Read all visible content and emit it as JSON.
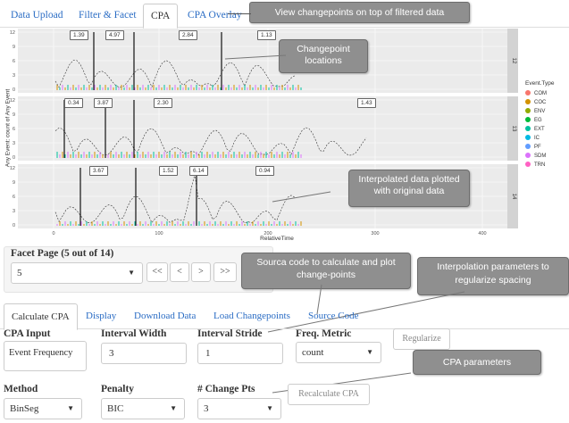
{
  "tabs": [
    {
      "label": "Data Upload",
      "active": false
    },
    {
      "label": "Filter & Facet",
      "active": false
    },
    {
      "label": "CPA",
      "active": true
    },
    {
      "label": "CPA Overlay",
      "active": false
    }
  ],
  "callouts": {
    "view_changepoints": "View changepoints on top of filtered data",
    "changepoint_locations": "Changepoint locations",
    "interpolated_data": "Interpolated data plotted with original data",
    "source_code": "Sourca code to calculate and plot change-points",
    "interpolation_params": "Interpolation parameters to regularize spacing",
    "cpa_params": "CPA parameters"
  },
  "chart": {
    "ylabel": "Any Event: count of Any Event",
    "xlabel": "RelativeTime",
    "x_ticks": [
      "0",
      "100",
      "200",
      "300",
      "400"
    ],
    "y_ticks": [
      "0",
      "3",
      "6",
      "9",
      "12"
    ],
    "facet_strips": [
      "12",
      "13",
      "14"
    ],
    "changepoint_labels": [
      [
        "1.39",
        "4.97",
        "2.84",
        "1.13"
      ],
      [
        "0.34",
        "3.87",
        "2.30",
        "1.43"
      ],
      [
        "3.67",
        "1.52",
        "6.14",
        "0.94"
      ]
    ],
    "legend_title": "Event.Type",
    "legend": [
      {
        "label": "COM",
        "color": "#f8766d"
      },
      {
        "label": "COC",
        "color": "#d39200"
      },
      {
        "label": "ENV",
        "color": "#93aa00"
      },
      {
        "label": "EG",
        "color": "#00ba38"
      },
      {
        "label": "EXT",
        "color": "#00c19f"
      },
      {
        "label": "IC",
        "color": "#00b9e3"
      },
      {
        "label": "PF",
        "color": "#619cff"
      },
      {
        "label": "SDM",
        "color": "#db72fb"
      },
      {
        "label": "TRN",
        "color": "#ff61c3"
      }
    ]
  },
  "facet_page": {
    "label": "Facet Page (5 out of 14)",
    "value": "5",
    "nav": [
      "<<",
      "<",
      ">",
      ">>"
    ]
  },
  "subtabs": [
    {
      "label": "Calculate CPA",
      "active": true
    },
    {
      "label": "Display",
      "active": false
    },
    {
      "label": "Download Data",
      "active": false
    },
    {
      "label": "Load Changepoints",
      "active": false
    },
    {
      "label": "Source Code",
      "active": false
    }
  ],
  "form": {
    "cpa_input_label": "CPA Input",
    "cpa_input_value": "Event Frequency",
    "interval_width_label": "Interval Width",
    "interval_width_value": "3",
    "interval_stride_label": "Interval Stride",
    "interval_stride_value": "1",
    "freq_metric_label": "Freq. Metric",
    "freq_metric_value": "count",
    "regularize_label": "Regularize",
    "method_label": "Method",
    "method_value": "BinSeg",
    "penalty_label": "Penalty",
    "penalty_value": "BIC",
    "change_pts_label": "# Change Pts",
    "change_pts_value": "3",
    "recalculate_label": "Recalculate CPA"
  }
}
